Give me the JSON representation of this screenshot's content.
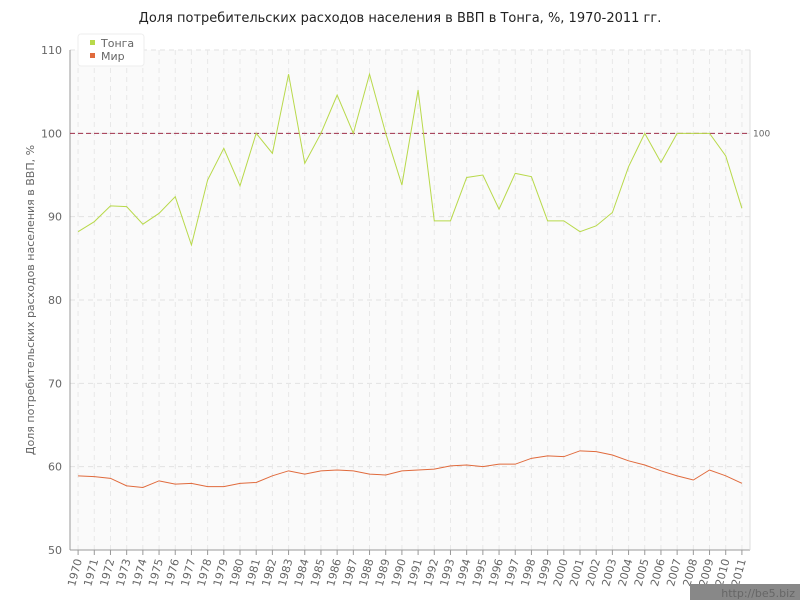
{
  "chart_data": {
    "type": "line",
    "title": "Доля потребительских расходов населения в ВВП в Тонга, %, 1970-2011 гг.",
    "y_label": "Доля потребительских расходов населения в ВВП, %",
    "x": [
      1970,
      1971,
      1972,
      1973,
      1974,
      1975,
      1976,
      1977,
      1978,
      1979,
      1980,
      1981,
      1982,
      1983,
      1984,
      1985,
      1986,
      1987,
      1988,
      1989,
      1990,
      1991,
      1992,
      1993,
      1994,
      1995,
      1996,
      1997,
      1998,
      1999,
      2000,
      2001,
      2002,
      2003,
      2004,
      2005,
      2006,
      2007,
      2008,
      2009,
      2010,
      2011
    ],
    "xlim": [
      1969.5,
      2011.5
    ],
    "xticks": [
      1970,
      1971,
      1972,
      1973,
      1974,
      1975,
      1976,
      1977,
      1978,
      1979,
      1980,
      1981,
      1982,
      1983,
      1984,
      1985,
      1986,
      1987,
      1988,
      1989,
      1990,
      1991,
      1992,
      1993,
      1994,
      1995,
      1996,
      1997,
      1998,
      1999,
      2000,
      2001,
      2002,
      2003,
      2004,
      2005,
      2006,
      2007,
      2008,
      2009,
      2010,
      2011
    ],
    "ylim": [
      50,
      110
    ],
    "yticks": [
      50,
      60,
      70,
      80,
      90,
      100,
      110
    ],
    "grid": true,
    "legend": "top-left",
    "reference_line": 100,
    "reference_color": "#a0304a",
    "series": [
      {
        "name": "Тонга",
        "color": "#b8d94a",
        "values": [
          88.2,
          89.4,
          91.3,
          91.2,
          89.1,
          90.4,
          92.4,
          86.6,
          94.4,
          98.2,
          93.7,
          100,
          97.6,
          107.1,
          96.4,
          100,
          104.6,
          100,
          107.1,
          100,
          93.8,
          105.2,
          89.5,
          89.5,
          94.7,
          95.0,
          90.9,
          95.2,
          94.8,
          89.5,
          89.5,
          88.2,
          88.9,
          90.5,
          96,
          100,
          96.5,
          100,
          100,
          100,
          97.3,
          91.0
        ]
      },
      {
        "name": "Мир",
        "color": "#e06a3c",
        "values": [
          58.9,
          58.8,
          58.6,
          57.7,
          57.5,
          58.3,
          57.9,
          58.0,
          57.6,
          57.6,
          58.0,
          58.1,
          58.9,
          59.5,
          59.1,
          59.5,
          59.6,
          59.5,
          59.1,
          59.0,
          59.5,
          59.6,
          59.7,
          60.1,
          60.2,
          60.0,
          60.3,
          60.3,
          61.0,
          61.3,
          61.2,
          61.9,
          61.8,
          61.4,
          60.7,
          60.2,
          59.5,
          58.9,
          58.4,
          59.6,
          58.9,
          58.0
        ]
      }
    ],
    "watermark": "http://be5.biz"
  }
}
